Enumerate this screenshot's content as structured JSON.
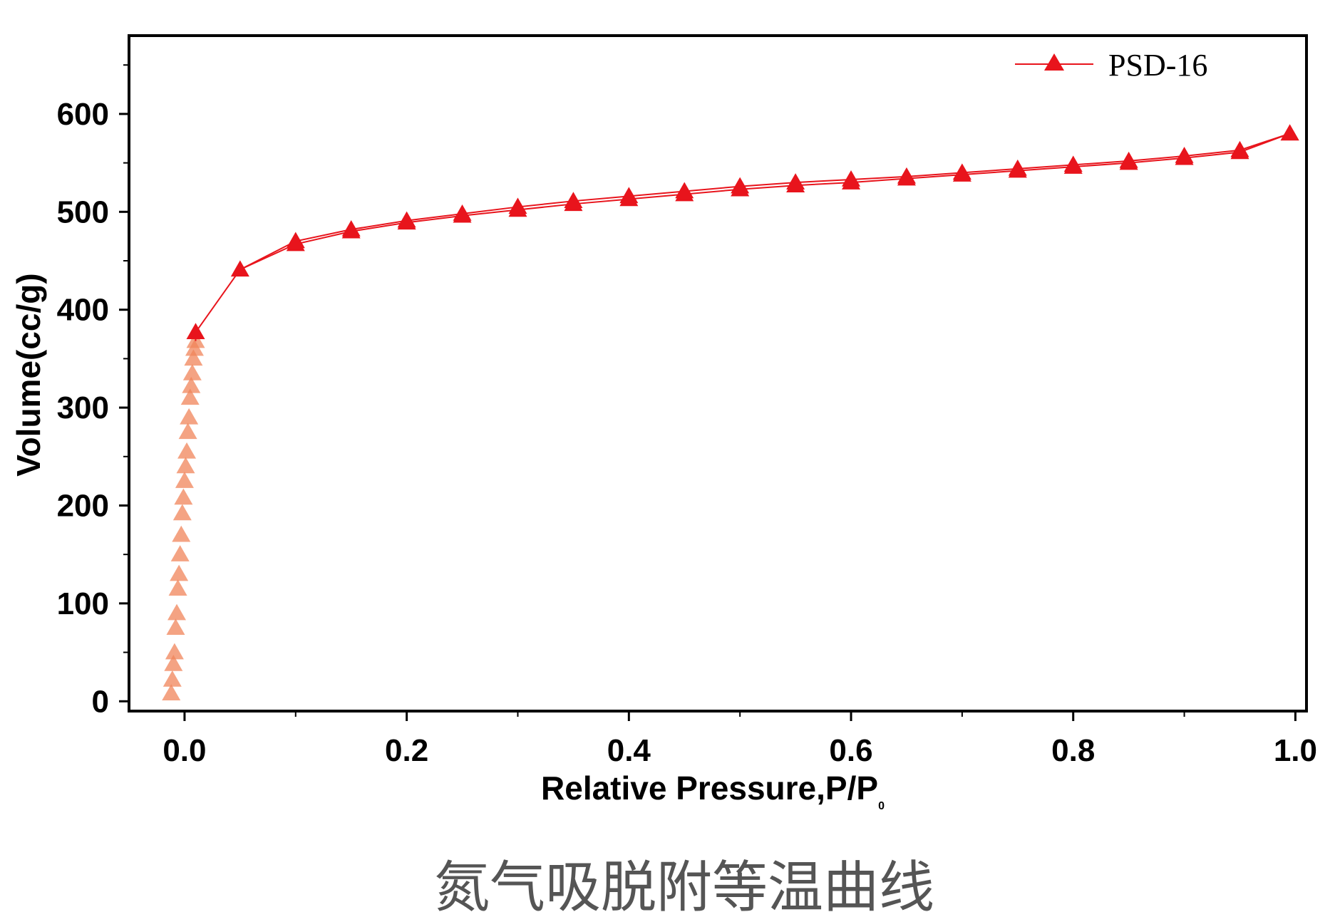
{
  "chart_data": {
    "type": "line",
    "title": "",
    "caption": "氮气吸脱附等温曲线",
    "xlabel": "Relative Pressure,P/P",
    "xlabel_sub": "0",
    "ylabel": "Volume(cc/g)",
    "xlim": [
      -0.05,
      1.01
    ],
    "ylim": [
      -10,
      680
    ],
    "x_ticks": [
      0.0,
      0.2,
      0.4,
      0.6,
      0.8,
      1.0
    ],
    "x_tick_labels": [
      "0.0",
      "0.2",
      "0.4",
      "0.6",
      "0.8",
      "1.0"
    ],
    "y_ticks": [
      0,
      100,
      200,
      300,
      400,
      500,
      600
    ],
    "y_tick_labels": [
      "0",
      "100",
      "200",
      "300",
      "400",
      "500",
      "600"
    ],
    "grid": false,
    "legend_position": "top-right",
    "colors": {
      "series": "#e8141c",
      "faded": "#f0845a",
      "axis": "#000000"
    },
    "series": [
      {
        "name": "PSD-16",
        "marker": "triangle",
        "x": [
          0.01,
          0.05,
          0.1,
          0.15,
          0.2,
          0.25,
          0.3,
          0.35,
          0.4,
          0.45,
          0.5,
          0.55,
          0.6,
          0.65,
          0.7,
          0.75,
          0.8,
          0.85,
          0.9,
          0.95,
          0.995
        ],
        "values": [
          377,
          441,
          467,
          480,
          489,
          496,
          502,
          508,
          513,
          518,
          523,
          527,
          530,
          534,
          538,
          542,
          546,
          550,
          555,
          561,
          580
        ]
      },
      {
        "name": "",
        "marker": "triangle",
        "x": [
          0.1,
          0.15,
          0.2,
          0.25,
          0.3,
          0.35,
          0.4,
          0.45,
          0.5,
          0.55,
          0.6,
          0.65,
          0.7,
          0.75,
          0.8,
          0.85,
          0.9,
          0.95,
          0.995
        ],
        "values": [
          470,
          482,
          491,
          498,
          505,
          511,
          516,
          521,
          526,
          530,
          533,
          536,
          540,
          544,
          548,
          552,
          557,
          563,
          580
        ]
      },
      {
        "name": "",
        "marker": "triangle",
        "faded": true,
        "x": [
          -0.012,
          -0.011,
          -0.01,
          -0.009,
          -0.008,
          -0.007,
          -0.006,
          -0.005,
          -0.004,
          -0.003,
          -0.002,
          -0.001,
          0.0,
          0.001,
          0.002,
          0.003,
          0.004,
          0.005,
          0.006,
          0.007,
          0.008,
          0.009,
          0.01
        ],
        "values": [
          8,
          22,
          38,
          50,
          75,
          90,
          115,
          130,
          150,
          170,
          192,
          208,
          225,
          240,
          255,
          275,
          290,
          310,
          322,
          335,
          350,
          360,
          368
        ]
      }
    ]
  }
}
